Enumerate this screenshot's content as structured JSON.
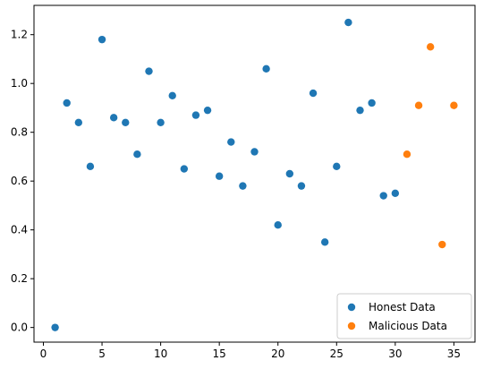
{
  "chart_data": {
    "type": "scatter",
    "title": "",
    "xlabel": "",
    "ylabel": "",
    "xlim": [
      -0.8,
      36.8
    ],
    "ylim": [
      -0.06,
      1.32
    ],
    "xticks": [
      0,
      5,
      10,
      15,
      20,
      25,
      30,
      35
    ],
    "xtick_labels": [
      "0",
      "5",
      "10",
      "15",
      "20",
      "25",
      "30",
      "35"
    ],
    "yticks": [
      0.0,
      0.2,
      0.4,
      0.6,
      0.8,
      1.0,
      1.2
    ],
    "ytick_labels": [
      "0.0",
      "0.2",
      "0.4",
      "0.6",
      "0.8",
      "1.0",
      "1.2"
    ],
    "grid": false,
    "legend_position": "lower-right",
    "series": [
      {
        "name": "Honest Data",
        "color": "#1f77b4",
        "points": [
          [
            1,
            0.0
          ],
          [
            2,
            0.92
          ],
          [
            3,
            0.84
          ],
          [
            4,
            0.66
          ],
          [
            5,
            1.18
          ],
          [
            6,
            0.86
          ],
          [
            7,
            0.84
          ],
          [
            8,
            0.71
          ],
          [
            9,
            1.05
          ],
          [
            10,
            0.84
          ],
          [
            11,
            0.95
          ],
          [
            12,
            0.65
          ],
          [
            13,
            0.87
          ],
          [
            14,
            0.89
          ],
          [
            15,
            0.62
          ],
          [
            16,
            0.76
          ],
          [
            17,
            0.58
          ],
          [
            18,
            0.72
          ],
          [
            19,
            1.06
          ],
          [
            20,
            0.42
          ],
          [
            21,
            0.63
          ],
          [
            22,
            0.58
          ],
          [
            23,
            0.96
          ],
          [
            24,
            0.35
          ],
          [
            25,
            0.66
          ],
          [
            26,
            1.25
          ],
          [
            27,
            0.89
          ],
          [
            28,
            0.92
          ],
          [
            29,
            0.54
          ],
          [
            30,
            0.55
          ]
        ]
      },
      {
        "name": "Malicious Data",
        "color": "#ff7f0e",
        "points": [
          [
            31,
            0.71
          ],
          [
            32,
            0.91
          ],
          [
            33,
            1.15
          ],
          [
            34,
            0.34
          ],
          [
            35,
            0.91
          ]
        ]
      }
    ]
  }
}
